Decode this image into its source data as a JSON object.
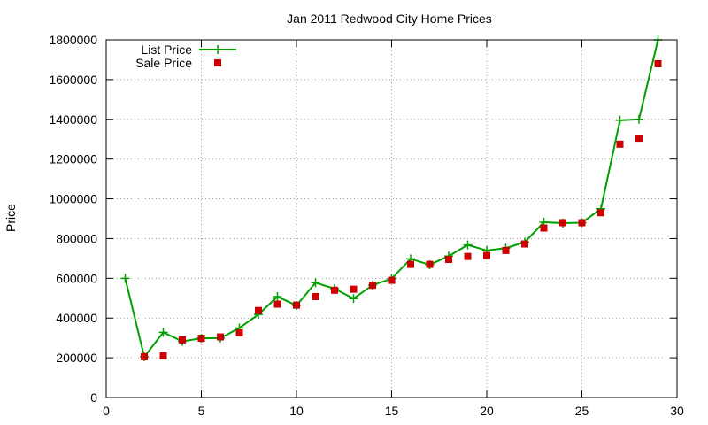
{
  "chart_data": {
    "type": "line",
    "title": "Jan 2011 Redwood City Home Prices",
    "xlabel": "",
    "ylabel": "Price",
    "xlim": [
      0,
      30
    ],
    "ylim": [
      0,
      1800000
    ],
    "xticks": [
      0,
      5,
      10,
      15,
      20,
      25,
      30
    ],
    "yticks": [
      0,
      200000,
      400000,
      600000,
      800000,
      1000000,
      1200000,
      1400000,
      1600000,
      1800000
    ],
    "grid": true,
    "legend_position": "top-left",
    "series": [
      {
        "name": "List Price",
        "style": "line-with-plus-markers",
        "color": "#00a000",
        "x": [
          1,
          2,
          3,
          4,
          5,
          6,
          7,
          8,
          9,
          10,
          11,
          12,
          13,
          14,
          15,
          16,
          17,
          18,
          19,
          20,
          21,
          22,
          23,
          24,
          25,
          26,
          27,
          28,
          29
        ],
        "y": [
          600000,
          205000,
          328000,
          283000,
          298000,
          299000,
          350000,
          418000,
          508000,
          463000,
          578000,
          548000,
          498000,
          566000,
          598000,
          698000,
          668000,
          712000,
          768000,
          740000,
          752000,
          782000,
          882000,
          878000,
          880000,
          950000,
          1395000,
          1400000,
          1800000
        ]
      },
      {
        "name": "Sale Price",
        "style": "square-markers",
        "color": "#cc0000",
        "x": [
          2,
          3,
          4,
          5,
          6,
          7,
          8,
          9,
          10,
          11,
          12,
          13,
          14,
          15,
          16,
          17,
          18,
          19,
          20,
          21,
          22,
          23,
          24,
          25,
          26,
          27,
          28,
          29
        ],
        "y": [
          205000,
          210000,
          290000,
          298000,
          305000,
          325000,
          438000,
          470000,
          465000,
          508000,
          540000,
          545000,
          565000,
          590000,
          670000,
          670000,
          695000,
          710000,
          715000,
          740000,
          773000,
          853000,
          880000,
          880000,
          930000,
          1275000,
          1305000,
          1680000
        ]
      }
    ]
  }
}
